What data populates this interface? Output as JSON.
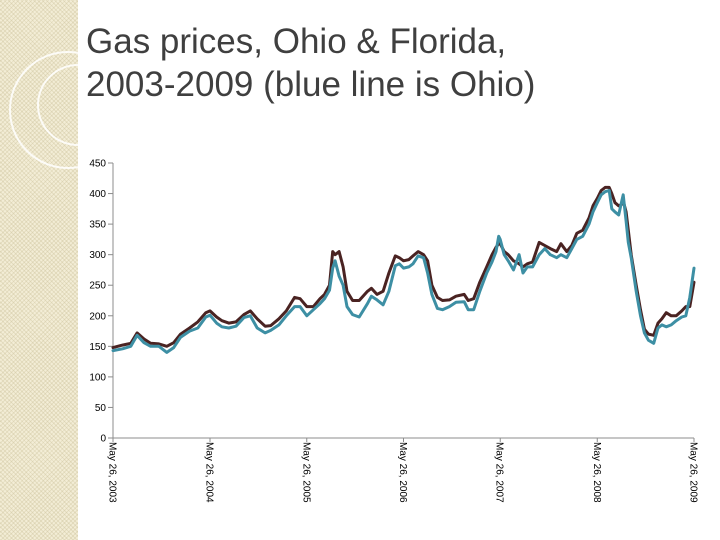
{
  "slide": {
    "title_line1": "Gas prices, Ohio & Florida,",
    "title_line2": "2003-2009 (blue line is Ohio)"
  },
  "colors": {
    "ohio": "#3d8fa4",
    "florida": "#4a2322",
    "axis": "#8c8c8c",
    "side_strip": "#f3edd6"
  },
  "chart_data": {
    "type": "line",
    "title": "",
    "xlabel": "",
    "ylabel": "",
    "ylim": [
      0,
      450
    ],
    "yticks": [
      0,
      50,
      100,
      150,
      200,
      250,
      300,
      350,
      400,
      450
    ],
    "xlim": [
      "2003-05-26",
      "2009-05-26"
    ],
    "xticks": [
      {
        "date": "2003-05-26",
        "label": "May 26, 2003"
      },
      {
        "date": "2004-05-26",
        "label": "May 26, 2004"
      },
      {
        "date": "2005-05-26",
        "label": "May 26, 2005"
      },
      {
        "date": "2006-05-26",
        "label": "May 26, 2006"
      },
      {
        "date": "2007-05-26",
        "label": "May 26, 2007"
      },
      {
        "date": "2008-05-26",
        "label": "May 26, 2008"
      },
      {
        "date": "2009-05-26",
        "label": "May 26, 2009"
      }
    ],
    "grid": false,
    "legend": "none",
    "series": [
      {
        "key": "ohio",
        "points": [
          [
            "2003-05-26",
            143
          ],
          [
            "2003-07-01",
            146
          ],
          [
            "2003-08-01",
            150
          ],
          [
            "2003-08-25",
            168
          ],
          [
            "2003-09-20",
            156
          ],
          [
            "2003-10-15",
            150
          ],
          [
            "2003-11-15",
            150
          ],
          [
            "2003-12-15",
            140
          ],
          [
            "2004-01-10",
            148
          ],
          [
            "2004-02-05",
            165
          ],
          [
            "2004-03-10",
            175
          ],
          [
            "2004-04-10",
            180
          ],
          [
            "2004-05-10",
            198
          ],
          [
            "2004-05-26",
            201
          ],
          [
            "2004-06-20",
            188
          ],
          [
            "2004-07-10",
            182
          ],
          [
            "2004-08-05",
            180
          ],
          [
            "2004-09-01",
            183
          ],
          [
            "2004-10-01",
            197
          ],
          [
            "2004-10-25",
            200
          ],
          [
            "2004-11-20",
            180
          ],
          [
            "2004-12-20",
            172
          ],
          [
            "2005-01-10",
            176
          ],
          [
            "2005-02-10",
            185
          ],
          [
            "2005-03-10",
            200
          ],
          [
            "2005-04-10",
            215
          ],
          [
            "2005-05-01",
            215
          ],
          [
            "2005-05-26",
            200
          ],
          [
            "2005-06-20",
            210
          ],
          [
            "2005-07-15",
            220
          ],
          [
            "2005-08-01",
            228
          ],
          [
            "2005-08-20",
            242
          ],
          [
            "2005-09-01",
            278
          ],
          [
            "2005-09-10",
            290
          ],
          [
            "2005-09-25",
            265
          ],
          [
            "2005-10-10",
            250
          ],
          [
            "2005-10-25",
            215
          ],
          [
            "2005-11-15",
            202
          ],
          [
            "2005-12-10",
            198
          ],
          [
            "2006-01-10",
            220
          ],
          [
            "2006-01-25",
            232
          ],
          [
            "2006-02-15",
            226
          ],
          [
            "2006-03-10",
            218
          ],
          [
            "2006-04-01",
            240
          ],
          [
            "2006-04-25",
            282
          ],
          [
            "2006-05-10",
            285
          ],
          [
            "2006-05-26",
            278
          ],
          [
            "2006-06-15",
            280
          ],
          [
            "2006-07-01",
            285
          ],
          [
            "2006-07-20",
            298
          ],
          [
            "2006-08-10",
            295
          ],
          [
            "2006-08-25",
            270
          ],
          [
            "2006-09-10",
            235
          ],
          [
            "2006-10-01",
            212
          ],
          [
            "2006-10-20",
            210
          ],
          [
            "2006-11-15",
            215
          ],
          [
            "2006-12-10",
            222
          ],
          [
            "2007-01-10",
            223
          ],
          [
            "2007-01-25",
            210
          ],
          [
            "2007-02-15",
            210
          ],
          [
            "2007-03-10",
            240
          ],
          [
            "2007-04-05",
            270
          ],
          [
            "2007-04-25",
            288
          ],
          [
            "2007-05-10",
            305
          ],
          [
            "2007-05-20",
            330
          ],
          [
            "2007-05-26",
            325
          ],
          [
            "2007-06-10",
            300
          ],
          [
            "2007-06-25",
            290
          ],
          [
            "2007-07-15",
            275
          ],
          [
            "2007-08-05",
            300
          ],
          [
            "2007-08-20",
            270
          ],
          [
            "2007-09-05",
            280
          ],
          [
            "2007-09-25",
            280
          ],
          [
            "2007-10-20",
            300
          ],
          [
            "2007-11-10",
            310
          ],
          [
            "2007-12-01",
            300
          ],
          [
            "2007-12-25",
            295
          ],
          [
            "2008-01-10",
            300
          ],
          [
            "2008-02-01",
            295
          ],
          [
            "2008-02-20",
            310
          ],
          [
            "2008-03-10",
            325
          ],
          [
            "2008-04-01",
            330
          ],
          [
            "2008-04-25",
            350
          ],
          [
            "2008-05-10",
            370
          ],
          [
            "2008-05-26",
            385
          ],
          [
            "2008-06-10",
            398
          ],
          [
            "2008-06-25",
            403
          ],
          [
            "2008-07-10",
            405
          ],
          [
            "2008-07-20",
            375
          ],
          [
            "2008-08-01",
            370
          ],
          [
            "2008-08-15",
            365
          ],
          [
            "2008-08-25",
            385
          ],
          [
            "2008-09-01",
            398
          ],
          [
            "2008-09-12",
            355
          ],
          [
            "2008-09-20",
            320
          ],
          [
            "2008-10-01",
            295
          ],
          [
            "2008-10-20",
            240
          ],
          [
            "2008-11-05",
            200
          ],
          [
            "2008-11-20",
            172
          ],
          [
            "2008-12-05",
            160
          ],
          [
            "2008-12-25",
            155
          ],
          [
            "2009-01-10",
            180
          ],
          [
            "2009-01-25",
            185
          ],
          [
            "2009-02-10",
            182
          ],
          [
            "2009-03-01",
            185
          ],
          [
            "2009-03-20",
            192
          ],
          [
            "2009-04-10",
            198
          ],
          [
            "2009-04-25",
            200
          ],
          [
            "2009-05-10",
            230
          ],
          [
            "2009-05-26",
            278
          ]
        ]
      },
      {
        "key": "florida",
        "points": [
          [
            "2003-05-26",
            148
          ],
          [
            "2003-07-01",
            152
          ],
          [
            "2003-08-01",
            155
          ],
          [
            "2003-08-25",
            172
          ],
          [
            "2003-09-20",
            162
          ],
          [
            "2003-10-15",
            155
          ],
          [
            "2003-11-15",
            154
          ],
          [
            "2003-12-15",
            150
          ],
          [
            "2004-01-10",
            156
          ],
          [
            "2004-02-05",
            170
          ],
          [
            "2004-03-10",
            180
          ],
          [
            "2004-04-10",
            190
          ],
          [
            "2004-05-10",
            205
          ],
          [
            "2004-05-26",
            208
          ],
          [
            "2004-06-20",
            198
          ],
          [
            "2004-07-10",
            192
          ],
          [
            "2004-08-05",
            188
          ],
          [
            "2004-09-01",
            190
          ],
          [
            "2004-10-01",
            202
          ],
          [
            "2004-10-25",
            208
          ],
          [
            "2004-11-20",
            195
          ],
          [
            "2004-12-20",
            183
          ],
          [
            "2005-01-10",
            184
          ],
          [
            "2005-02-10",
            195
          ],
          [
            "2005-03-10",
            208
          ],
          [
            "2005-04-10",
            230
          ],
          [
            "2005-05-01",
            228
          ],
          [
            "2005-05-26",
            215
          ],
          [
            "2005-06-20",
            215
          ],
          [
            "2005-07-15",
            228
          ],
          [
            "2005-08-01",
            235
          ],
          [
            "2005-08-20",
            250
          ],
          [
            "2005-09-01",
            305
          ],
          [
            "2005-09-10",
            300
          ],
          [
            "2005-09-25",
            305
          ],
          [
            "2005-10-10",
            280
          ],
          [
            "2005-10-25",
            240
          ],
          [
            "2005-11-15",
            225
          ],
          [
            "2005-12-10",
            225
          ],
          [
            "2006-01-10",
            240
          ],
          [
            "2006-01-25",
            245
          ],
          [
            "2006-02-15",
            235
          ],
          [
            "2006-03-10",
            240
          ],
          [
            "2006-04-01",
            270
          ],
          [
            "2006-04-25",
            298
          ],
          [
            "2006-05-10",
            295
          ],
          [
            "2006-05-26",
            290
          ],
          [
            "2006-06-15",
            292
          ],
          [
            "2006-07-01",
            298
          ],
          [
            "2006-07-20",
            305
          ],
          [
            "2006-08-10",
            300
          ],
          [
            "2006-08-25",
            290
          ],
          [
            "2006-09-10",
            250
          ],
          [
            "2006-10-01",
            230
          ],
          [
            "2006-10-20",
            225
          ],
          [
            "2006-11-15",
            226
          ],
          [
            "2006-12-10",
            232
          ],
          [
            "2007-01-10",
            235
          ],
          [
            "2007-01-25",
            225
          ],
          [
            "2007-02-15",
            228
          ],
          [
            "2007-03-10",
            255
          ],
          [
            "2007-04-05",
            280
          ],
          [
            "2007-04-25",
            300
          ],
          [
            "2007-05-10",
            312
          ],
          [
            "2007-05-20",
            318
          ],
          [
            "2007-05-26",
            318
          ],
          [
            "2007-06-10",
            305
          ],
          [
            "2007-06-25",
            300
          ],
          [
            "2007-07-15",
            290
          ],
          [
            "2007-08-05",
            285
          ],
          [
            "2007-08-20",
            280
          ],
          [
            "2007-09-05",
            285
          ],
          [
            "2007-09-25",
            288
          ],
          [
            "2007-10-20",
            320
          ],
          [
            "2007-11-10",
            315
          ],
          [
            "2007-12-01",
            310
          ],
          [
            "2007-12-25",
            305
          ],
          [
            "2008-01-10",
            318
          ],
          [
            "2008-02-01",
            305
          ],
          [
            "2008-02-20",
            315
          ],
          [
            "2008-03-10",
            335
          ],
          [
            "2008-04-01",
            340
          ],
          [
            "2008-04-25",
            360
          ],
          [
            "2008-05-10",
            380
          ],
          [
            "2008-05-26",
            392
          ],
          [
            "2008-06-10",
            405
          ],
          [
            "2008-06-25",
            410
          ],
          [
            "2008-07-10",
            410
          ],
          [
            "2008-07-20",
            400
          ],
          [
            "2008-08-01",
            385
          ],
          [
            "2008-08-15",
            380
          ],
          [
            "2008-08-25",
            382
          ],
          [
            "2008-09-01",
            388
          ],
          [
            "2008-09-12",
            370
          ],
          [
            "2008-09-20",
            340
          ],
          [
            "2008-10-01",
            300
          ],
          [
            "2008-10-20",
            250
          ],
          [
            "2008-11-05",
            210
          ],
          [
            "2008-11-20",
            178
          ],
          [
            "2008-12-05",
            170
          ],
          [
            "2008-12-25",
            168
          ],
          [
            "2009-01-10",
            188
          ],
          [
            "2009-01-25",
            195
          ],
          [
            "2009-02-10",
            205
          ],
          [
            "2009-03-01",
            200
          ],
          [
            "2009-03-20",
            200
          ],
          [
            "2009-04-10",
            208
          ],
          [
            "2009-04-25",
            215
          ],
          [
            "2009-05-10",
            215
          ],
          [
            "2009-05-26",
            255
          ]
        ]
      }
    ]
  }
}
